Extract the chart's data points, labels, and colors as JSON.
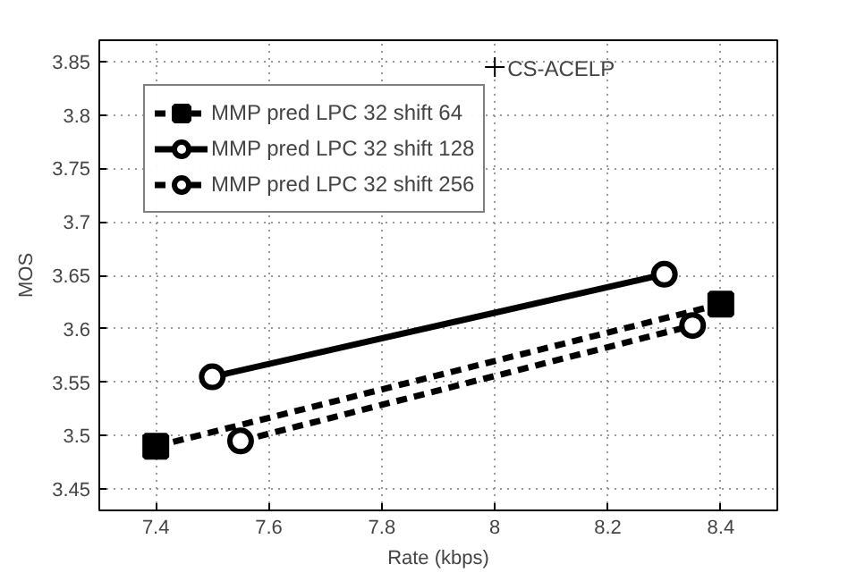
{
  "chart_data": {
    "type": "line",
    "xlabel": "Rate (kbps)",
    "ylabel": "MOS",
    "xlim": [
      7.3,
      8.5
    ],
    "ylim": [
      3.43,
      3.87
    ],
    "xticks": [
      7.4,
      7.6,
      7.8,
      8,
      8.2,
      8.4
    ],
    "yticks": [
      3.45,
      3.5,
      3.55,
      3.6,
      3.65,
      3.7,
      3.75,
      3.8,
      3.85
    ],
    "grid": true,
    "legend": "top left",
    "series": [
      {
        "name": "MMP pred LPC 32 shift 64",
        "color": "#000000",
        "x": [
          7.4,
          8.4
        ],
        "values": [
          3.49,
          3.623
        ],
        "marker": "square",
        "line_style": "dashed"
      },
      {
        "name": "MMP pred LPC 32 shift 128",
        "color": "#000000",
        "x": [
          7.5,
          8.3
        ],
        "values": [
          3.555,
          3.651
        ],
        "marker": "circle",
        "line_style": "solid"
      },
      {
        "name": "MMP pred LPC 32 shift 256",
        "color": "#000000",
        "x": [
          7.55,
          8.35
        ],
        "values": [
          3.495,
          3.603
        ],
        "marker": "circle",
        "line_style": "dashed"
      },
      {
        "name": "CS-ACELP",
        "type": "scatter",
        "color": "#000000",
        "x": [
          8.0
        ],
        "values": [
          3.845
        ],
        "marker": "cross"
      }
    ]
  }
}
